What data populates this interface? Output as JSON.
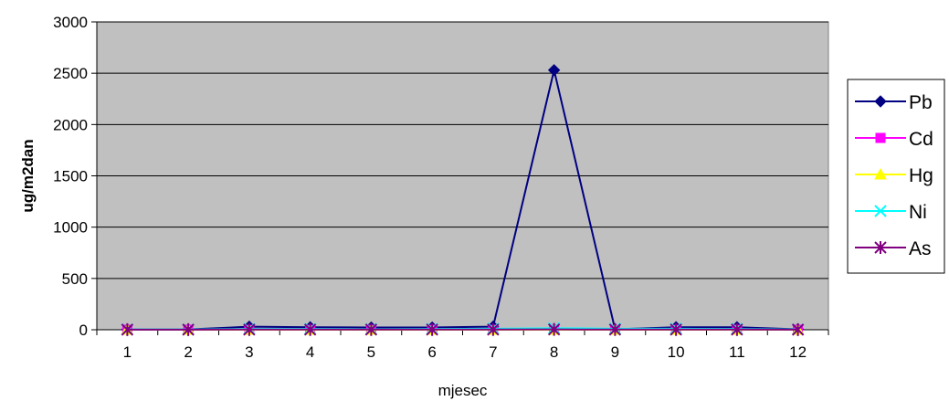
{
  "chart_data": {
    "type": "line",
    "title": "",
    "xlabel": "mjesec",
    "ylabel": "ug/m2dan",
    "categories": [
      "1",
      "2",
      "3",
      "4",
      "5",
      "6",
      "7",
      "8",
      "9",
      "10",
      "11",
      "12"
    ],
    "ylim": [
      0,
      3000
    ],
    "yticks": [
      "0",
      "500",
      "1000",
      "1500",
      "2000",
      "2500",
      "3000"
    ],
    "grid": true,
    "legend_position": "right",
    "series": [
      {
        "name": "Pb",
        "color": "#000080",
        "marker": "diamond",
        "values": [
          2,
          3,
          30,
          25,
          22,
          22,
          30,
          2530,
          5,
          25,
          25,
          5
        ]
      },
      {
        "name": "Cd",
        "color": "#FF00FF",
        "marker": "square",
        "values": [
          0,
          0,
          0,
          0,
          0,
          0,
          0,
          0,
          0,
          0,
          0,
          0
        ]
      },
      {
        "name": "Hg",
        "color": "#FFFF00",
        "marker": "triangle",
        "values": [
          0,
          0,
          0,
          0,
          0,
          0,
          0,
          0,
          0,
          0,
          0,
          0
        ]
      },
      {
        "name": "Ni",
        "color": "#00FFFF",
        "marker": "x",
        "values": [
          3,
          3,
          8,
          8,
          6,
          8,
          10,
          15,
          10,
          10,
          8,
          3
        ]
      },
      {
        "name": "As",
        "color": "#800080",
        "marker": "asterisk",
        "values": [
          1,
          1,
          2,
          2,
          2,
          2,
          2,
          3,
          2,
          2,
          2,
          1
        ]
      }
    ]
  }
}
